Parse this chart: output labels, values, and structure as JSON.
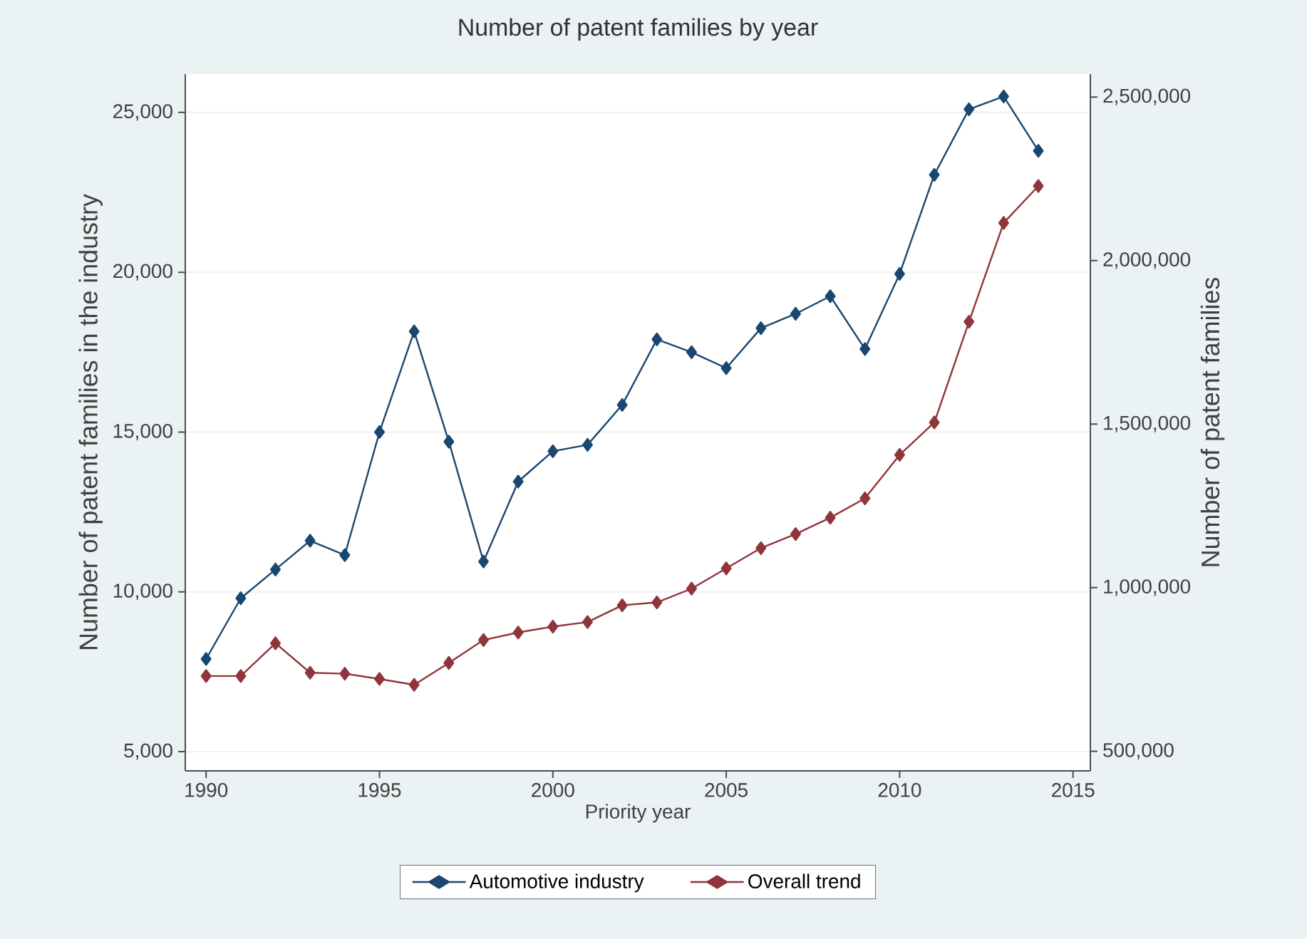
{
  "chart_data": {
    "type": "line",
    "title": "Number of patent families by year",
    "xlabel": "Priority year",
    "ylabel": "Number of patent families in the industry",
    "y2label": "Number of patent families",
    "x": [
      1990,
      1991,
      1992,
      1993,
      1994,
      1995,
      1996,
      1997,
      1998,
      1999,
      2000,
      2001,
      2002,
      2003,
      2004,
      2005,
      2006,
      2007,
      2008,
      2009,
      2010,
      2011,
      2012,
      2013,
      2014
    ],
    "series": [
      {
        "name": "Automotive industry",
        "color": "#1a476f",
        "axis": "y",
        "values": [
          7900,
          9800,
          10700,
          11600,
          11150,
          15000,
          18150,
          14700,
          10950,
          13450,
          14400,
          14600,
          15850,
          17900,
          17500,
          17000,
          18250,
          18700,
          19250,
          17600,
          19950,
          23050,
          25100,
          25500,
          23800
        ]
      },
      {
        "name": "Overall trend",
        "color": "#90353b",
        "axis": "y2",
        "values": [
          730000,
          730000,
          830000,
          740000,
          737000,
          721000,
          703000,
          770000,
          840000,
          863000,
          881000,
          895000,
          946000,
          955000,
          997000,
          1059000,
          1121000,
          1164000,
          1214000,
          1273000,
          1406000,
          1505000,
          1813000,
          2115000,
          2228000
        ]
      }
    ],
    "xlim": [
      1989.4,
      2015.5
    ],
    "xticks": [
      1990,
      1995,
      2000,
      2005,
      2010,
      2015
    ],
    "ylim": [
      4400,
      26200
    ],
    "yticks": [
      {
        "value": 5000,
        "label": "5,000"
      },
      {
        "value": 10000,
        "label": "10,000"
      },
      {
        "value": 15000,
        "label": "15,000"
      },
      {
        "value": 20000,
        "label": "20,000"
      },
      {
        "value": 25000,
        "label": "25,000"
      }
    ],
    "y2lim": [
      440000,
      2570000
    ],
    "y2ticks": [
      {
        "value": 500000,
        "label": "500,000"
      },
      {
        "value": 1000000,
        "label": "1,000,000"
      },
      {
        "value": 1500000,
        "label": "1,500,000"
      },
      {
        "value": 2000000,
        "label": "2,000,000"
      },
      {
        "value": 2500000,
        "label": "2,500,000"
      }
    ],
    "grid": "y",
    "legend": "bottom",
    "marker": "diamond",
    "line_style": "solid"
  }
}
